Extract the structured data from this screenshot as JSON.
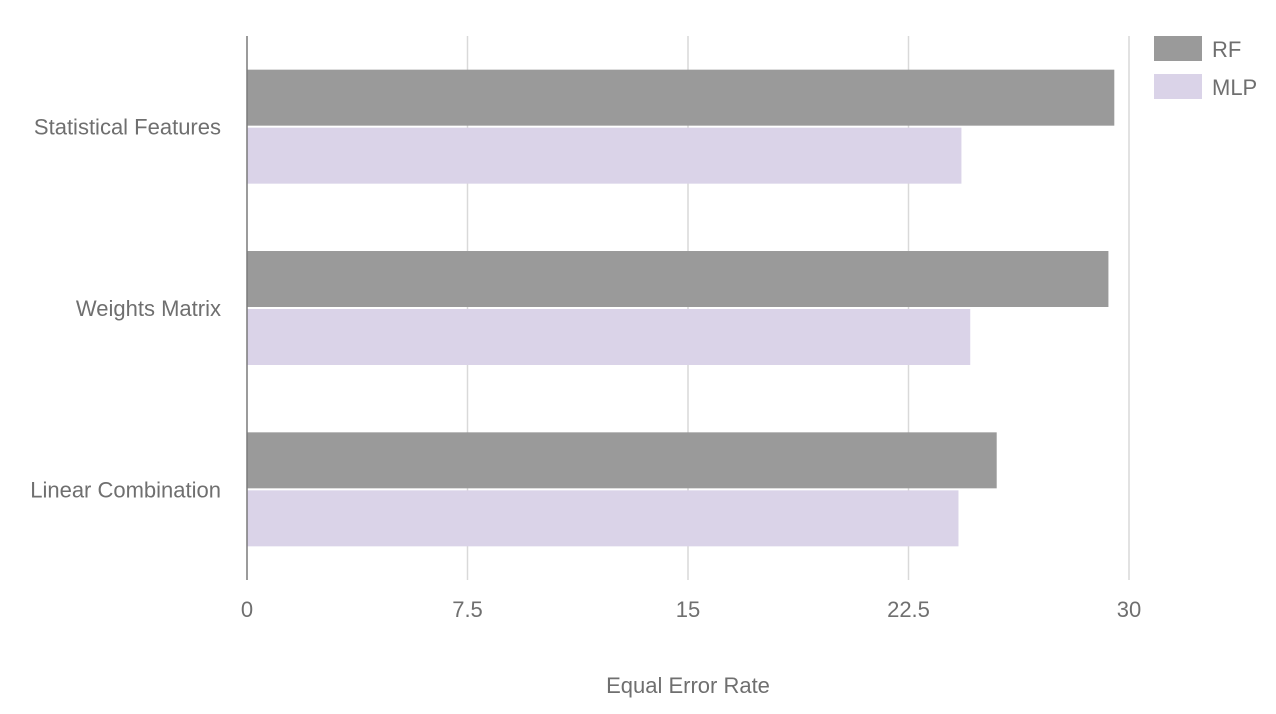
{
  "chart_data": {
    "type": "bar",
    "orientation": "horizontal",
    "categories": [
      "Statistical Features",
      "Weights Matrix",
      "Linear Combination"
    ],
    "series": [
      {
        "name": "RF",
        "color": "#9a9a9a",
        "values": [
          29.5,
          29.3,
          25.5
        ]
      },
      {
        "name": "MLP",
        "color": "#dad3e8",
        "values": [
          24.3,
          24.6,
          24.2
        ]
      }
    ],
    "xlabel": "Equal Error Rate",
    "ylabel": "",
    "xlim": [
      0,
      30
    ],
    "xticks": [
      0,
      7.5,
      15,
      22.5,
      30
    ],
    "xtick_labels": [
      "0",
      "7.5",
      "15",
      "22.5",
      "30"
    ],
    "grid": true,
    "legend_position": "top-right"
  }
}
